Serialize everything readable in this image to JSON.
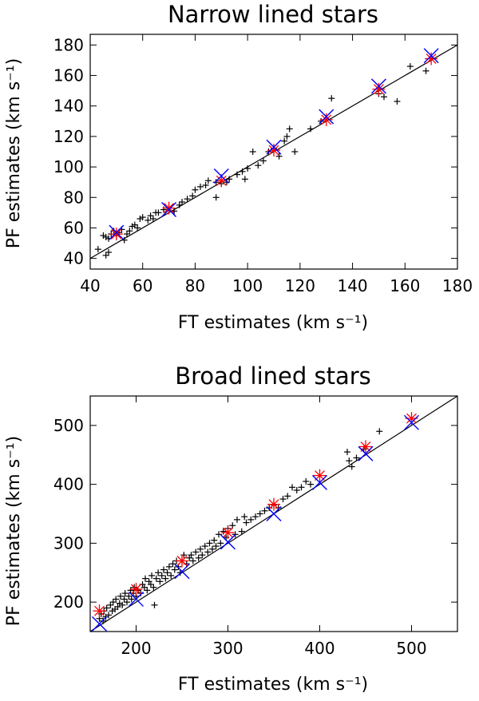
{
  "chart_data": [
    {
      "type": "scatter",
      "title": "Narrow lined stars",
      "xlabel": "FT estimates (km s⁻¹)",
      "ylabel": "PF estimates (km s⁻¹)",
      "xlim": [
        40,
        180
      ],
      "ylim": [
        33,
        187
      ],
      "xticks": [
        "40",
        "60",
        "80",
        "100",
        "120",
        "140",
        "160",
        "180"
      ],
      "yticks": [
        "40",
        "60",
        "80",
        "100",
        "120",
        "140",
        "160",
        "180"
      ],
      "reference_line": "y = x",
      "grid": false,
      "series": [
        {
          "marker": "plus",
          "color": "#000000",
          "points": [
            [
              43,
              46
            ],
            [
              45,
              55
            ],
            [
              46,
              42
            ],
            [
              46,
              54
            ],
            [
              47,
              44
            ],
            [
              47,
              53
            ],
            [
              48,
              56
            ],
            [
              49,
              58
            ],
            [
              50,
              55
            ],
            [
              51,
              57
            ],
            [
              52,
              59
            ],
            [
              53,
              52
            ],
            [
              54,
              56
            ],
            [
              55,
              58
            ],
            [
              56,
              61
            ],
            [
              57,
              62
            ],
            [
              58,
              60
            ],
            [
              59,
              66
            ],
            [
              60,
              67
            ],
            [
              62,
              65
            ],
            [
              63,
              68
            ],
            [
              64,
              66
            ],
            [
              65,
              70
            ],
            [
              66,
              70
            ],
            [
              68,
              72
            ],
            [
              70,
              73
            ],
            [
              72,
              71
            ],
            [
              74,
              75
            ],
            [
              75,
              77
            ],
            [
              77,
              79
            ],
            [
              79,
              81
            ],
            [
              80,
              85
            ],
            [
              82,
              87
            ],
            [
              84,
              88
            ],
            [
              85,
              91
            ],
            [
              88,
              80
            ],
            [
              88,
              90
            ],
            [
              90,
              89
            ],
            [
              92,
              90
            ],
            [
              93,
              92
            ],
            [
              96,
              95
            ],
            [
              98,
              97
            ],
            [
              99,
              92
            ],
            [
              100,
              99
            ],
            [
              102,
              110
            ],
            [
              104,
              101
            ],
            [
              106,
              104
            ],
            [
              108,
              110
            ],
            [
              110,
              112
            ],
            [
              112,
              107
            ],
            [
              114,
              117
            ],
            [
              115,
              120
            ],
            [
              116,
              125
            ],
            [
              118,
              110
            ],
            [
              124,
              125
            ],
            [
              128,
              130
            ],
            [
              132,
              145
            ],
            [
              150,
              148
            ],
            [
              152,
              146
            ],
            [
              157,
              143
            ],
            [
              162,
              166
            ],
            [
              168,
              163
            ]
          ]
        },
        {
          "marker": "asterisk",
          "color": "#ff0000",
          "points": [
            [
              50,
              56
            ],
            [
              70,
              73
            ],
            [
              90,
              91
            ],
            [
              110,
              111
            ],
            [
              130,
              131
            ],
            [
              150,
              151
            ],
            [
              170,
              171
            ]
          ]
        },
        {
          "marker": "cross",
          "color": "#0000ff",
          "points": [
            [
              50,
              57
            ],
            [
              70,
              72
            ],
            [
              90,
              94
            ],
            [
              110,
              113
            ],
            [
              130,
              133
            ],
            [
              150,
              153
            ],
            [
              170,
              173
            ]
          ]
        }
      ]
    },
    {
      "type": "scatter",
      "title": "Broad lined stars",
      "xlabel": "FT estimates (km s⁻¹)",
      "ylabel": "PF estimates (km s⁻¹)",
      "xlim": [
        150,
        550
      ],
      "ylim": [
        150,
        550
      ],
      "xticks": [
        "200",
        "300",
        "400",
        "500"
      ],
      "yticks": [
        "200",
        "300",
        "400",
        "500"
      ],
      "reference_line": "y = x",
      "grid": false,
      "series": [
        {
          "marker": "plus",
          "color": "#000000",
          "points": [
            [
              160,
              172
            ],
            [
              162,
              180
            ],
            [
              164,
              168
            ],
            [
              165,
              185
            ],
            [
              167,
              175
            ],
            [
              168,
              190
            ],
            [
              170,
              178
            ],
            [
              172,
              195
            ],
            [
              174,
              185
            ],
            [
              175,
              200
            ],
            [
              177,
              188
            ],
            [
              178,
              205
            ],
            [
              180,
              192
            ],
            [
              182,
              198
            ],
            [
              183,
              210
            ],
            [
              185,
              195
            ],
            [
              187,
              205
            ],
            [
              188,
              215
            ],
            [
              190,
              200
            ],
            [
              192,
              210
            ],
            [
              194,
              220
            ],
            [
              195,
              205
            ],
            [
              197,
              215
            ],
            [
              198,
              225
            ],
            [
              200,
              210
            ],
            [
              202,
              220
            ],
            [
              205,
              215
            ],
            [
              207,
              230
            ],
            [
              209,
              225
            ],
            [
              210,
              240
            ],
            [
              212,
              220
            ],
            [
              214,
              235
            ],
            [
              216,
              230
            ],
            [
              217,
              245
            ],
            [
              219,
              225
            ],
            [
              220,
              195
            ],
            [
              222,
              240
            ],
            [
              224,
              250
            ],
            [
              226,
              235
            ],
            [
              228,
              245
            ],
            [
              230,
              255
            ],
            [
              232,
              240
            ],
            [
              234,
              250
            ],
            [
              236,
              260
            ],
            [
              238,
              245
            ],
            [
              240,
              265
            ],
            [
              242,
              255
            ],
            [
              244,
              270
            ],
            [
              246,
              260
            ],
            [
              248,
              250
            ],
            [
              250,
              270
            ],
            [
              252,
              280
            ],
            [
              255,
              265
            ],
            [
              258,
              275
            ],
            [
              260,
              280
            ],
            [
              262,
              270
            ],
            [
              265,
              285
            ],
            [
              268,
              275
            ],
            [
              270,
              290
            ],
            [
              272,
              280
            ],
            [
              275,
              295
            ],
            [
              278,
              285
            ],
            [
              280,
              300
            ],
            [
              283,
              290
            ],
            [
              285,
              305
            ],
            [
              287,
              295
            ],
            [
              290,
              315
            ],
            [
              292,
              300
            ],
            [
              295,
              320
            ],
            [
              298,
              310
            ],
            [
              300,
              325
            ],
            [
              305,
              330
            ],
            [
              308,
              315
            ],
            [
              310,
              340
            ],
            [
              315,
              320
            ],
            [
              318,
              345
            ],
            [
              320,
              335
            ],
            [
              325,
              340
            ],
            [
              330,
              345
            ],
            [
              335,
              350
            ],
            [
              340,
              355
            ],
            [
              345,
              360
            ],
            [
              350,
              365
            ],
            [
              355,
              360
            ],
            [
              360,
              375
            ],
            [
              365,
              380
            ],
            [
              370,
              395
            ],
            [
              375,
              390
            ],
            [
              380,
              395
            ],
            [
              385,
              405
            ],
            [
              390,
              400
            ],
            [
              430,
              455
            ],
            [
              432,
              440
            ],
            [
              435,
              430
            ],
            [
              440,
              445
            ],
            [
              448,
              460
            ],
            [
              465,
              490
            ]
          ]
        },
        {
          "marker": "asterisk",
          "color": "#ff0000",
          "points": [
            [
              160,
              185
            ],
            [
              200,
              222
            ],
            [
              250,
              270
            ],
            [
              300,
              318
            ],
            [
              350,
              366
            ],
            [
              400,
              415
            ],
            [
              450,
              464
            ],
            [
              500,
              512
            ]
          ]
        },
        {
          "marker": "cross",
          "color": "#0000ff",
          "points": [
            [
              160,
              163
            ],
            [
              200,
              205
            ],
            [
              250,
              252
            ],
            [
              300,
              302
            ],
            [
              350,
              350
            ],
            [
              400,
              403
            ],
            [
              450,
              452
            ],
            [
              500,
              505
            ]
          ]
        }
      ]
    }
  ]
}
